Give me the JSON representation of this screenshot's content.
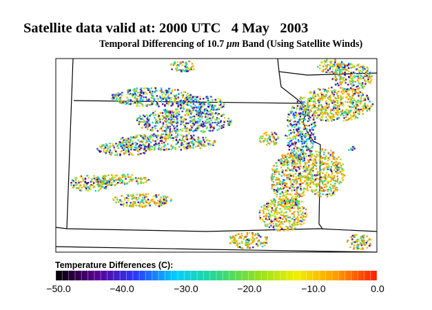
{
  "title": "Satellite data valid at: 2000 UTC   4 May   2003",
  "subtitle_pre": "Temporal Differencing of 10.7 ",
  "subtitle_unit": "μm",
  "subtitle_post": " Band (Using Satellite Winds)",
  "legend": {
    "title": "Temperature Differences (C):",
    "range": [
      -50.0,
      0.0
    ],
    "ticks": [
      "−50.0",
      "−40.0",
      "−30.0",
      "−20.0",
      "−10.0",
      "0.0"
    ]
  },
  "colors": {
    "background": "#ffffff",
    "boundaries": "#000000",
    "scale": [
      "#000000",
      "#5a0090",
      "#2a3cff",
      "#00d0ff",
      "#2ad88a",
      "#8fe020",
      "#f0f000",
      "#ff9a00",
      "#ff1a00"
    ]
  }
}
